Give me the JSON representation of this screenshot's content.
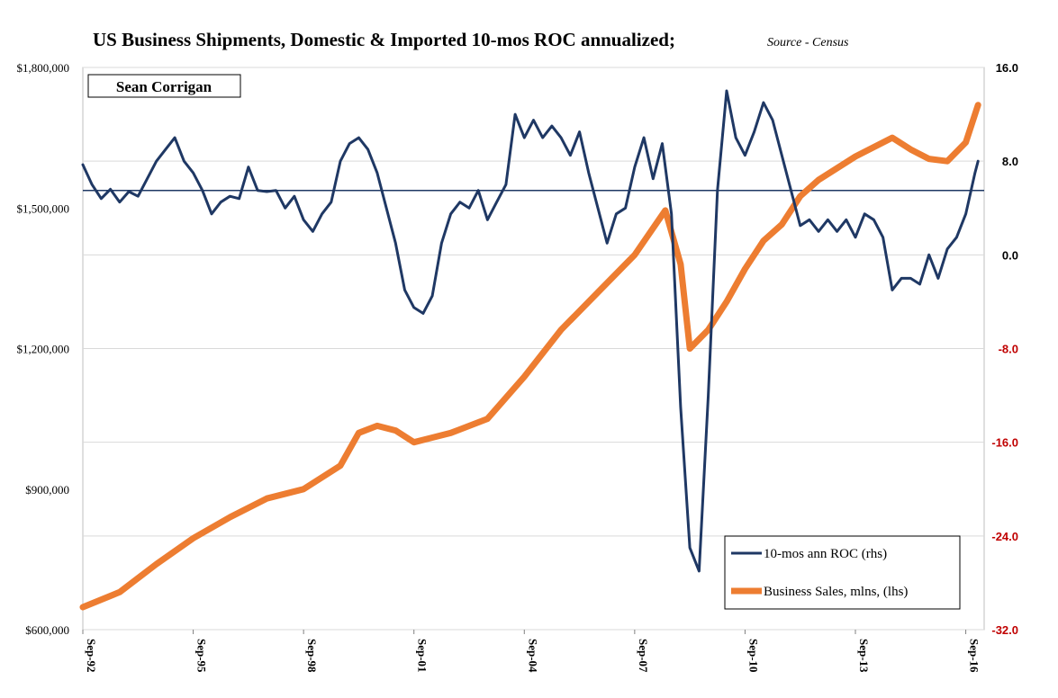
{
  "chart_data": {
    "type": "line",
    "title": "US Business Shipments, Domestic & Imported 10-mos ROC annualized;",
    "subtitle": "Source - Census",
    "author": "Sean Corrigan",
    "x_ticks": [
      "Sep-92",
      "Sep-95",
      "Sep-98",
      "Sep-01",
      "Sep-04",
      "Sep-07",
      "Sep-10",
      "Sep-13",
      "Sep-16"
    ],
    "x_range": [
      "1992-09",
      "2017-03"
    ],
    "y_left": {
      "ticks": [
        "$600,000",
        "$900,000",
        "$1,200,000",
        "$1,500,000",
        "$1,800,000"
      ],
      "range": [
        600000,
        1800000
      ]
    },
    "y_right": {
      "ticks": [
        "-32.0",
        "-24.0",
        "-16.0",
        "-8.0",
        "0.0",
        "8.0",
        "16.0"
      ],
      "range": [
        -32,
        16
      ],
      "reference_line": 5.5
    },
    "colors": {
      "roc": "#1f3864",
      "sales": "#ed7d31",
      "negative_tick": "#c00000",
      "positive_tick": "#000000",
      "gridline": "#d9d9d9"
    },
    "gridlines": "horizontal",
    "legend_position": "bottom-right",
    "series": [
      {
        "name": "10-mos ann ROC (rhs)",
        "axis": "right",
        "points": [
          [
            "1992-09",
            7.7
          ],
          [
            "1992-12",
            6.0
          ],
          [
            "1993-03",
            4.8
          ],
          [
            "1993-06",
            5.6
          ],
          [
            "1993-09",
            4.5
          ],
          [
            "1993-12",
            5.4
          ],
          [
            "1994-03",
            5.0
          ],
          [
            "1994-06",
            6.5
          ],
          [
            "1994-09",
            8.0
          ],
          [
            "1994-12",
            9.0
          ],
          [
            "1995-03",
            10.0
          ],
          [
            "1995-06",
            8.0
          ],
          [
            "1995-09",
            7.0
          ],
          [
            "1995-12",
            5.5
          ],
          [
            "1996-03",
            3.5
          ],
          [
            "1996-06",
            4.5
          ],
          [
            "1996-09",
            5.0
          ],
          [
            "1996-12",
            4.8
          ],
          [
            "1997-03",
            7.5
          ],
          [
            "1997-06",
            5.5
          ],
          [
            "1997-09",
            5.4
          ],
          [
            "1997-12",
            5.5
          ],
          [
            "1998-03",
            4.0
          ],
          [
            "1998-06",
            5.0
          ],
          [
            "1998-09",
            3.0
          ],
          [
            "1998-12",
            2.0
          ],
          [
            "1999-03",
            3.5
          ],
          [
            "1999-06",
            4.5
          ],
          [
            "1999-09",
            8.0
          ],
          [
            "1999-12",
            9.5
          ],
          [
            "2000-03",
            10.0
          ],
          [
            "2000-06",
            9.0
          ],
          [
            "2000-09",
            7.0
          ],
          [
            "2000-12",
            4.0
          ],
          [
            "2001-03",
            1.0
          ],
          [
            "2001-06",
            -3.0
          ],
          [
            "2001-09",
            -4.5
          ],
          [
            "2001-12",
            -5.0
          ],
          [
            "2002-03",
            -3.5
          ],
          [
            "2002-06",
            1.0
          ],
          [
            "2002-09",
            3.5
          ],
          [
            "2002-12",
            4.5
          ],
          [
            "2003-03",
            4.0
          ],
          [
            "2003-06",
            5.5
          ],
          [
            "2003-09",
            3.0
          ],
          [
            "2003-12",
            4.5
          ],
          [
            "2004-03",
            6.0
          ],
          [
            "2004-06",
            12.0
          ],
          [
            "2004-09",
            10.0
          ],
          [
            "2004-12",
            11.5
          ],
          [
            "2005-03",
            10.0
          ],
          [
            "2005-06",
            11.0
          ],
          [
            "2005-09",
            10.0
          ],
          [
            "2005-12",
            8.5
          ],
          [
            "2006-03",
            10.5
          ],
          [
            "2006-06",
            7.0
          ],
          [
            "2006-09",
            4.0
          ],
          [
            "2006-12",
            1.0
          ],
          [
            "2007-03",
            3.5
          ],
          [
            "2007-06",
            4.0
          ],
          [
            "2007-09",
            7.5
          ],
          [
            "2007-12",
            10.0
          ],
          [
            "2008-03",
            6.5
          ],
          [
            "2008-06",
            9.5
          ],
          [
            "2008-09",
            3.5
          ],
          [
            "2008-12",
            -13.0
          ],
          [
            "2009-03",
            -25.0
          ],
          [
            "2009-06",
            -27.0
          ],
          [
            "2009-09",
            -12.0
          ],
          [
            "2009-12",
            5.5
          ],
          [
            "2010-03",
            14.0
          ],
          [
            "2010-06",
            10.0
          ],
          [
            "2010-09",
            8.5
          ],
          [
            "2010-12",
            10.5
          ],
          [
            "2011-03",
            13.0
          ],
          [
            "2011-06",
            11.5
          ],
          [
            "2011-09",
            8.5
          ],
          [
            "2011-12",
            5.5
          ],
          [
            "2012-03",
            2.5
          ],
          [
            "2012-06",
            3.0
          ],
          [
            "2012-09",
            2.0
          ],
          [
            "2012-12",
            3.0
          ],
          [
            "2013-03",
            2.0
          ],
          [
            "2013-06",
            3.0
          ],
          [
            "2013-09",
            1.5
          ],
          [
            "2013-12",
            3.5
          ],
          [
            "2014-03",
            3.0
          ],
          [
            "2014-06",
            1.5
          ],
          [
            "2014-09",
            -3.0
          ],
          [
            "2014-12",
            -2.0
          ],
          [
            "2015-03",
            -2.0
          ],
          [
            "2015-06",
            -2.5
          ],
          [
            "2015-09",
            0.0
          ],
          [
            "2015-12",
            -2.0
          ],
          [
            "2016-03",
            0.5
          ],
          [
            "2016-06",
            1.5
          ],
          [
            "2016-09",
            3.5
          ],
          [
            "2016-12",
            7.0
          ],
          [
            "2017-01",
            8.0
          ]
        ]
      },
      {
        "name": "Business Sales, mlns, (lhs)",
        "axis": "left",
        "points": [
          [
            "1992-09",
            648000
          ],
          [
            "1993-09",
            680000
          ],
          [
            "1994-09",
            740000
          ],
          [
            "1995-09",
            795000
          ],
          [
            "1996-09",
            840000
          ],
          [
            "1997-09",
            880000
          ],
          [
            "1998-09",
            900000
          ],
          [
            "1999-09",
            950000
          ],
          [
            "2000-03",
            1020000
          ],
          [
            "2000-09",
            1035000
          ],
          [
            "2001-03",
            1025000
          ],
          [
            "2001-09",
            1000000
          ],
          [
            "2002-03",
            1010000
          ],
          [
            "2002-09",
            1020000
          ],
          [
            "2003-09",
            1050000
          ],
          [
            "2004-09",
            1140000
          ],
          [
            "2005-09",
            1240000
          ],
          [
            "2006-09",
            1320000
          ],
          [
            "2007-09",
            1400000
          ],
          [
            "2008-07",
            1495000
          ],
          [
            "2008-12",
            1380000
          ],
          [
            "2009-03",
            1200000
          ],
          [
            "2009-09",
            1240000
          ],
          [
            "2010-03",
            1300000
          ],
          [
            "2010-09",
            1370000
          ],
          [
            "2011-03",
            1430000
          ],
          [
            "2011-09",
            1465000
          ],
          [
            "2012-03",
            1525000
          ],
          [
            "2012-09",
            1560000
          ],
          [
            "2013-09",
            1610000
          ],
          [
            "2014-09",
            1650000
          ],
          [
            "2015-03",
            1625000
          ],
          [
            "2015-09",
            1605000
          ],
          [
            "2016-03",
            1600000
          ],
          [
            "2016-09",
            1640000
          ],
          [
            "2017-01",
            1720000
          ]
        ]
      }
    ]
  }
}
